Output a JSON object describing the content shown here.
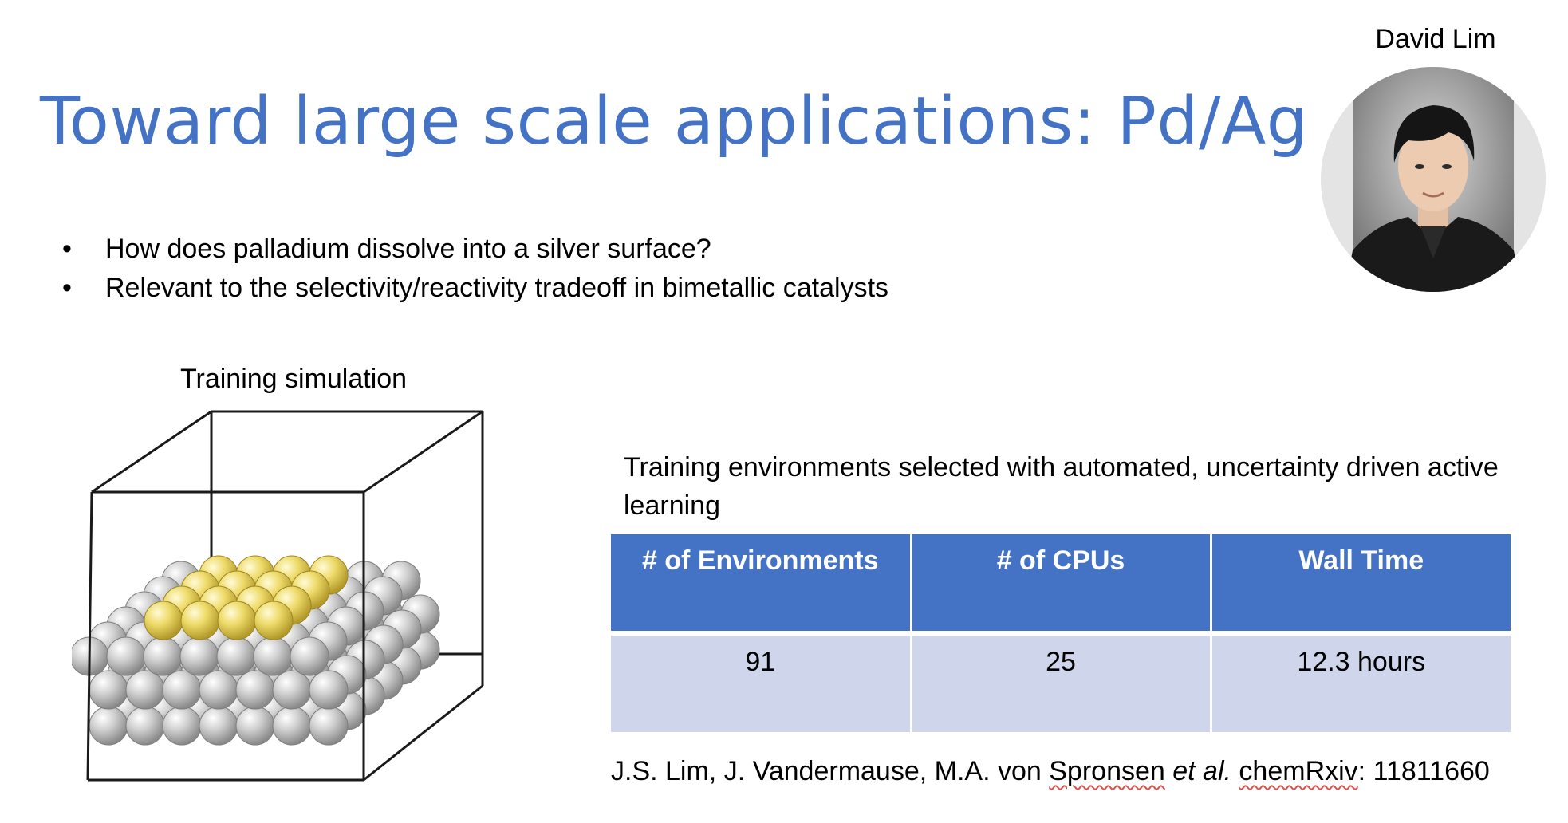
{
  "slide": {
    "title": "Toward large scale applications: Pd/Ag",
    "presenter_name": "David Lim",
    "bullets": [
      "How does palladium dissolve into a silver surface?",
      "Relevant to the selectivity/reactivity tradeoff in bimetallic catalysts"
    ],
    "bullet_marker": "•",
    "figure_caption": "Training simulation",
    "table_caption": "Training environments selected with automated, uncertainty driven active learning",
    "table": {
      "headers": [
        "# of Environments",
        "# of CPUs",
        "Wall Time"
      ],
      "rows": [
        [
          "91",
          "25",
          "12.3 hours"
        ]
      ]
    },
    "citation": {
      "authors": "J.S. Lim, J. Vandermause, M.A. von ",
      "flagged_name": "Spronsen",
      "etal": "et al.",
      "journal": "chemRxiv",
      "id": ": 11811660"
    }
  },
  "colors": {
    "title": "#4472c4",
    "table_header": "#4472c4",
    "table_body": "#cfd5ea",
    "silver_atom": "#c8c8c8",
    "palladium_atom": "#e6d35a",
    "spellcheck_underline": "#d9534f"
  }
}
